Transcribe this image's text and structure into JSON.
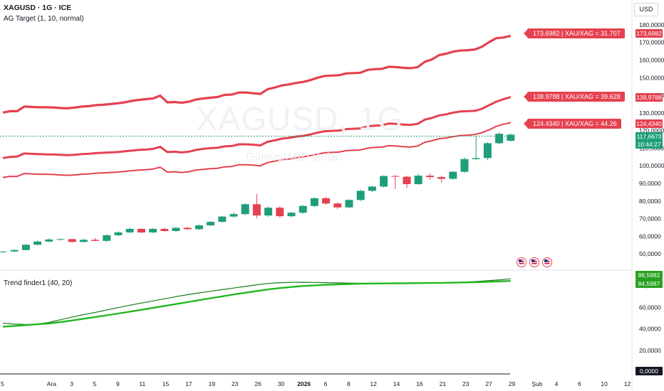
{
  "header": {
    "symbol_line": "XAGUSD · 1G · ICE",
    "indicator_main": "AG Target (1, 10, normal)",
    "indicator_sub": "Trend finder1 (40, 20)",
    "currency_button": "USD"
  },
  "watermark": {
    "symbol": "XAGUSD, 1G",
    "description": "Gümüş/ABD Doları"
  },
  "target_labels": [
    "173.6982 | XAU/XAG = 31.707",
    "138.9788 | XAU/XAG = 39.628",
    "124.4340 | XAU/XAG = 44.26"
  ],
  "axis_boxes": {
    "t1": "173,6982",
    "t2": "138,9788",
    "t3": "124,4340",
    "hidden_partial": "118,3",
    "last_price": "117,6673",
    "countdown": "10:44:27",
    "sub_top": "86,5982",
    "sub_bottom": "84,5987",
    "sub_zero": "0,0000"
  },
  "colors": {
    "up": "#1e9e7a",
    "down": "#e5414f",
    "target": "#e5414f",
    "trend_dark": "#1a7a1a",
    "trend_light": "#22b71f"
  },
  "event_icons": [
    "us-flag-icon",
    "us-flag-icon",
    "us-flag-icon"
  ],
  "chart_data": {
    "type": "candlestick",
    "y_ticks": [
      "180,0000",
      "170,0000",
      "160,0000",
      "150,0000",
      "140,0000",
      "130,0000",
      "120,0000",
      "110,0000",
      "100,0000",
      "90,0000",
      "80,0000",
      "70,0000",
      "60,0000",
      "50,0000"
    ],
    "y_tick_values": [
      180,
      170,
      160,
      150,
      140,
      130,
      120,
      110,
      100,
      90,
      80,
      70,
      60,
      50
    ],
    "ylim": [
      42,
      186
    ],
    "x_ticks": [
      {
        "label": "5",
        "t": 0
      },
      {
        "label": "Ara",
        "t": 4
      },
      {
        "label": "3",
        "t": 6
      },
      {
        "label": "5",
        "t": 8
      },
      {
        "label": "9",
        "t": 10
      },
      {
        "label": "11",
        "t": 12
      },
      {
        "label": "15",
        "t": 14
      },
      {
        "label": "17",
        "t": 16
      },
      {
        "label": "19",
        "t": 18
      },
      {
        "label": "23",
        "t": 20
      },
      {
        "label": "26",
        "t": 22
      },
      {
        "label": "30",
        "t": 24
      },
      {
        "label": "2026",
        "t": 26
      },
      {
        "label": "6",
        "t": 28
      },
      {
        "label": "8",
        "t": 30
      },
      {
        "label": "12",
        "t": 32
      },
      {
        "label": "14",
        "t": 34
      },
      {
        "label": "16",
        "t": 36
      },
      {
        "label": "21",
        "t": 38
      },
      {
        "label": "23",
        "t": 40
      },
      {
        "label": "27",
        "t": 42
      },
      {
        "label": "29",
        "t": 44
      },
      {
        "label": "Şub",
        "t": 46
      },
      {
        "label": "4",
        "t": 48
      },
      {
        "label": "6",
        "t": 50
      },
      {
        "label": "10",
        "t": 52
      },
      {
        "label": "12",
        "t": 54
      }
    ],
    "candles": [
      [
        51.0,
        51.6,
        50.6,
        51.4
      ],
      [
        51.4,
        52.6,
        51.0,
        52.2
      ],
      [
        52.2,
        55.5,
        52.0,
        55.2
      ],
      [
        55.2,
        57.6,
        54.8,
        57.0
      ],
      [
        57.0,
        58.8,
        56.6,
        58.2
      ],
      [
        58.2,
        58.9,
        57.6,
        58.4
      ],
      [
        58.4,
        58.7,
        56.5,
        56.8
      ],
      [
        56.8,
        58.6,
        56.4,
        58.0
      ],
      [
        58.0,
        59.0,
        57.2,
        57.4
      ],
      [
        57.4,
        61.0,
        57.0,
        60.6
      ],
      [
        60.6,
        62.8,
        60.0,
        62.2
      ],
      [
        62.2,
        64.8,
        61.8,
        64.2
      ],
      [
        64.2,
        64.6,
        61.8,
        62.2
      ],
      [
        62.2,
        64.6,
        61.8,
        64.2
      ],
      [
        64.2,
        64.8,
        62.6,
        63.0
      ],
      [
        63.0,
        65.2,
        62.6,
        64.8
      ],
      [
        64.8,
        65.4,
        63.8,
        64.0
      ],
      [
        64.0,
        66.6,
        63.6,
        66.2
      ],
      [
        66.2,
        68.6,
        65.8,
        68.2
      ],
      [
        68.2,
        71.6,
        67.8,
        71.2
      ],
      [
        71.2,
        73.4,
        70.6,
        72.6
      ],
      [
        72.6,
        78.8,
        72.0,
        78.2
      ],
      [
        78.2,
        84.0,
        70.2,
        71.8
      ],
      [
        71.8,
        76.8,
        71.0,
        76.2
      ],
      [
        76.2,
        77.0,
        70.6,
        71.4
      ],
      [
        71.4,
        73.8,
        70.8,
        73.4
      ],
      [
        73.4,
        77.8,
        72.8,
        77.2
      ],
      [
        77.2,
        82.2,
        76.6,
        81.6
      ],
      [
        81.6,
        82.4,
        77.8,
        78.6
      ],
      [
        78.6,
        79.2,
        75.4,
        76.4
      ],
      [
        76.4,
        81.0,
        76.0,
        80.6
      ],
      [
        80.6,
        86.4,
        80.0,
        85.8
      ],
      [
        85.8,
        88.6,
        85.2,
        88.2
      ],
      [
        88.2,
        94.6,
        87.6,
        94.2
      ],
      [
        94.2,
        94.8,
        86.8,
        93.8
      ],
      [
        93.8,
        94.4,
        87.4,
        89.6
      ],
      [
        89.6,
        95.4,
        89.2,
        94.4
      ],
      [
        94.4,
        95.8,
        92.0,
        93.6
      ],
      [
        93.6,
        94.4,
        90.4,
        92.6
      ],
      [
        92.6,
        97.0,
        92.2,
        96.6
      ],
      [
        96.6,
        104.6,
        96.0,
        103.8
      ],
      [
        103.8,
        117.0,
        103.4,
        104.4
      ],
      [
        104.4,
        113.4,
        103.2,
        112.8
      ],
      [
        112.8,
        118.8,
        112.2,
        118.2
      ],
      [
        114.2,
        118.3,
        113.8,
        117.6673
      ]
    ],
    "series": [
      {
        "name": "173.6982 | XAU/XAG = 31.707",
        "values": [
          130.2,
          131.0,
          131.0,
          133.6,
          133.4,
          133.2,
          133.2,
          133.1,
          132.8,
          132.6,
          133.0,
          133.6,
          133.8,
          134.4,
          134.6,
          135.0,
          135.4,
          136.0,
          136.8,
          137.4,
          137.8,
          138.2,
          139.8,
          136.0,
          136.2,
          135.8,
          136.4,
          137.6,
          138.2,
          138.6,
          139.0,
          140.2,
          140.4,
          141.6,
          141.6,
          141.2,
          140.8,
          143.4,
          144.4,
          145.6,
          146.2,
          147.0,
          147.6,
          148.6,
          150.0,
          151.0,
          151.2,
          151.4,
          152.4,
          152.6,
          152.8,
          154.4,
          154.8,
          155.0,
          156.2,
          156.0,
          155.6,
          155.4,
          156.0,
          159.0,
          160.4,
          162.8,
          163.6,
          164.8,
          165.4,
          165.6,
          166.0,
          167.6,
          170.2,
          172.4,
          172.8,
          173.6982
        ]
      },
      {
        "name": "138.9788 | XAU/XAG = 39.628",
        "values": [
          104.4,
          105.0,
          105.2,
          107.0,
          106.8,
          106.6,
          106.5,
          106.4,
          106.2,
          106.0,
          106.2,
          106.6,
          106.8,
          107.2,
          107.4,
          107.6,
          107.8,
          108.2,
          108.6,
          109.0,
          109.2,
          109.6,
          110.8,
          107.8,
          108.0,
          107.6,
          108.0,
          109.0,
          109.6,
          110.0,
          110.2,
          111.0,
          111.2,
          112.2,
          112.2,
          112.0,
          111.6,
          113.6,
          114.4,
          115.4,
          115.8,
          116.6,
          117.0,
          117.8,
          118.8,
          119.6,
          119.8,
          120.0,
          120.8,
          121.0,
          121.2,
          122.4,
          122.8,
          123.0,
          124.0,
          123.8,
          123.4,
          123.2,
          123.8,
          126.2,
          127.2,
          128.6,
          129.2,
          130.2,
          130.8,
          131.0,
          131.2,
          132.4,
          134.4,
          136.4,
          137.8,
          138.9788
        ]
      },
      {
        "name": "124.4340 | XAU/XAG = 44.26",
        "values": [
          93.4,
          94.0,
          94.0,
          95.6,
          95.4,
          95.2,
          95.2,
          95.1,
          94.8,
          94.6,
          94.8,
          95.2,
          95.4,
          95.8,
          96.0,
          96.2,
          96.4,
          96.8,
          97.2,
          97.6,
          97.8,
          98.2,
          99.2,
          96.4,
          96.6,
          96.2,
          96.6,
          97.6,
          98.0,
          98.4,
          98.6,
          99.4,
          99.6,
          100.6,
          100.6,
          100.4,
          100.0,
          101.8,
          102.6,
          103.4,
          103.8,
          104.6,
          105.0,
          105.8,
          106.6,
          107.4,
          107.6,
          107.8,
          108.6,
          108.8,
          109.0,
          110.0,
          110.4,
          110.6,
          111.4,
          111.2,
          110.8,
          110.6,
          111.2,
          113.4,
          114.2,
          115.4,
          115.8,
          116.6,
          117.2,
          117.4,
          117.8,
          118.8,
          120.4,
          122.4,
          123.6,
          124.434
        ]
      }
    ],
    "last_price": 117.6673,
    "trend_finder": {
      "y_ticks": [
        "80,0000",
        "60,0000",
        "40,0000",
        "20,0000"
      ],
      "y_tick_values": [
        80,
        60,
        40,
        20
      ],
      "ylim": [
        -2,
        94
      ],
      "series": [
        {
          "x": [
            0,
            1,
            2,
            3,
            4,
            5,
            6,
            7,
            8,
            9,
            10,
            11,
            12,
            13,
            14,
            15,
            16,
            17,
            18,
            19,
            20,
            21,
            22,
            23,
            24,
            25,
            26,
            27,
            28,
            29,
            30,
            31,
            32,
            33,
            34,
            35,
            36,
            37,
            38,
            39,
            40,
            41,
            42,
            43,
            44
          ],
          "values": [
            45.2,
            44.4,
            44.0,
            44.5,
            46.0,
            48.5,
            51.0,
            53.2,
            55.3,
            57.5,
            59.8,
            62.0,
            64.0,
            66.0,
            68.0,
            70.0,
            71.8,
            73.5,
            75.0,
            76.5,
            78.0,
            79.5,
            81.0,
            82.3,
            83.0,
            83.3,
            83.4,
            83.2,
            83.0,
            82.8,
            82.6,
            82.4,
            82.3,
            82.3,
            82.3,
            82.3,
            82.4,
            82.6,
            82.9,
            83.2,
            83.6,
            84.1,
            84.8,
            85.6,
            86.5982
          ]
        },
        {
          "x": [
            0,
            1,
            2,
            3,
            4,
            5,
            6,
            7,
            8,
            9,
            10,
            11,
            12,
            13,
            14,
            15,
            16,
            17,
            18,
            19,
            20,
            21,
            22,
            23,
            24,
            25,
            26,
            27,
            28,
            29,
            30,
            31,
            32,
            33,
            34,
            35,
            36,
            37,
            38,
            39,
            40,
            41,
            42,
            43,
            44
          ],
          "values": [
            42.0,
            42.6,
            43.5,
            44.3,
            45.0,
            46.3,
            47.8,
            49.4,
            51.0,
            52.6,
            54.3,
            56.0,
            57.7,
            59.5,
            61.3,
            63.1,
            64.9,
            66.7,
            68.5,
            70.2,
            72.0,
            73.6,
            75.2,
            76.7,
            78.0,
            79.0,
            79.9,
            80.5,
            81.0,
            81.4,
            81.7,
            82.0,
            82.2,
            82.3,
            82.4,
            82.5,
            82.6,
            82.7,
            82.8,
            83.0,
            83.2,
            83.5,
            83.8,
            84.2,
            84.5987
          ]
        }
      ]
    }
  }
}
